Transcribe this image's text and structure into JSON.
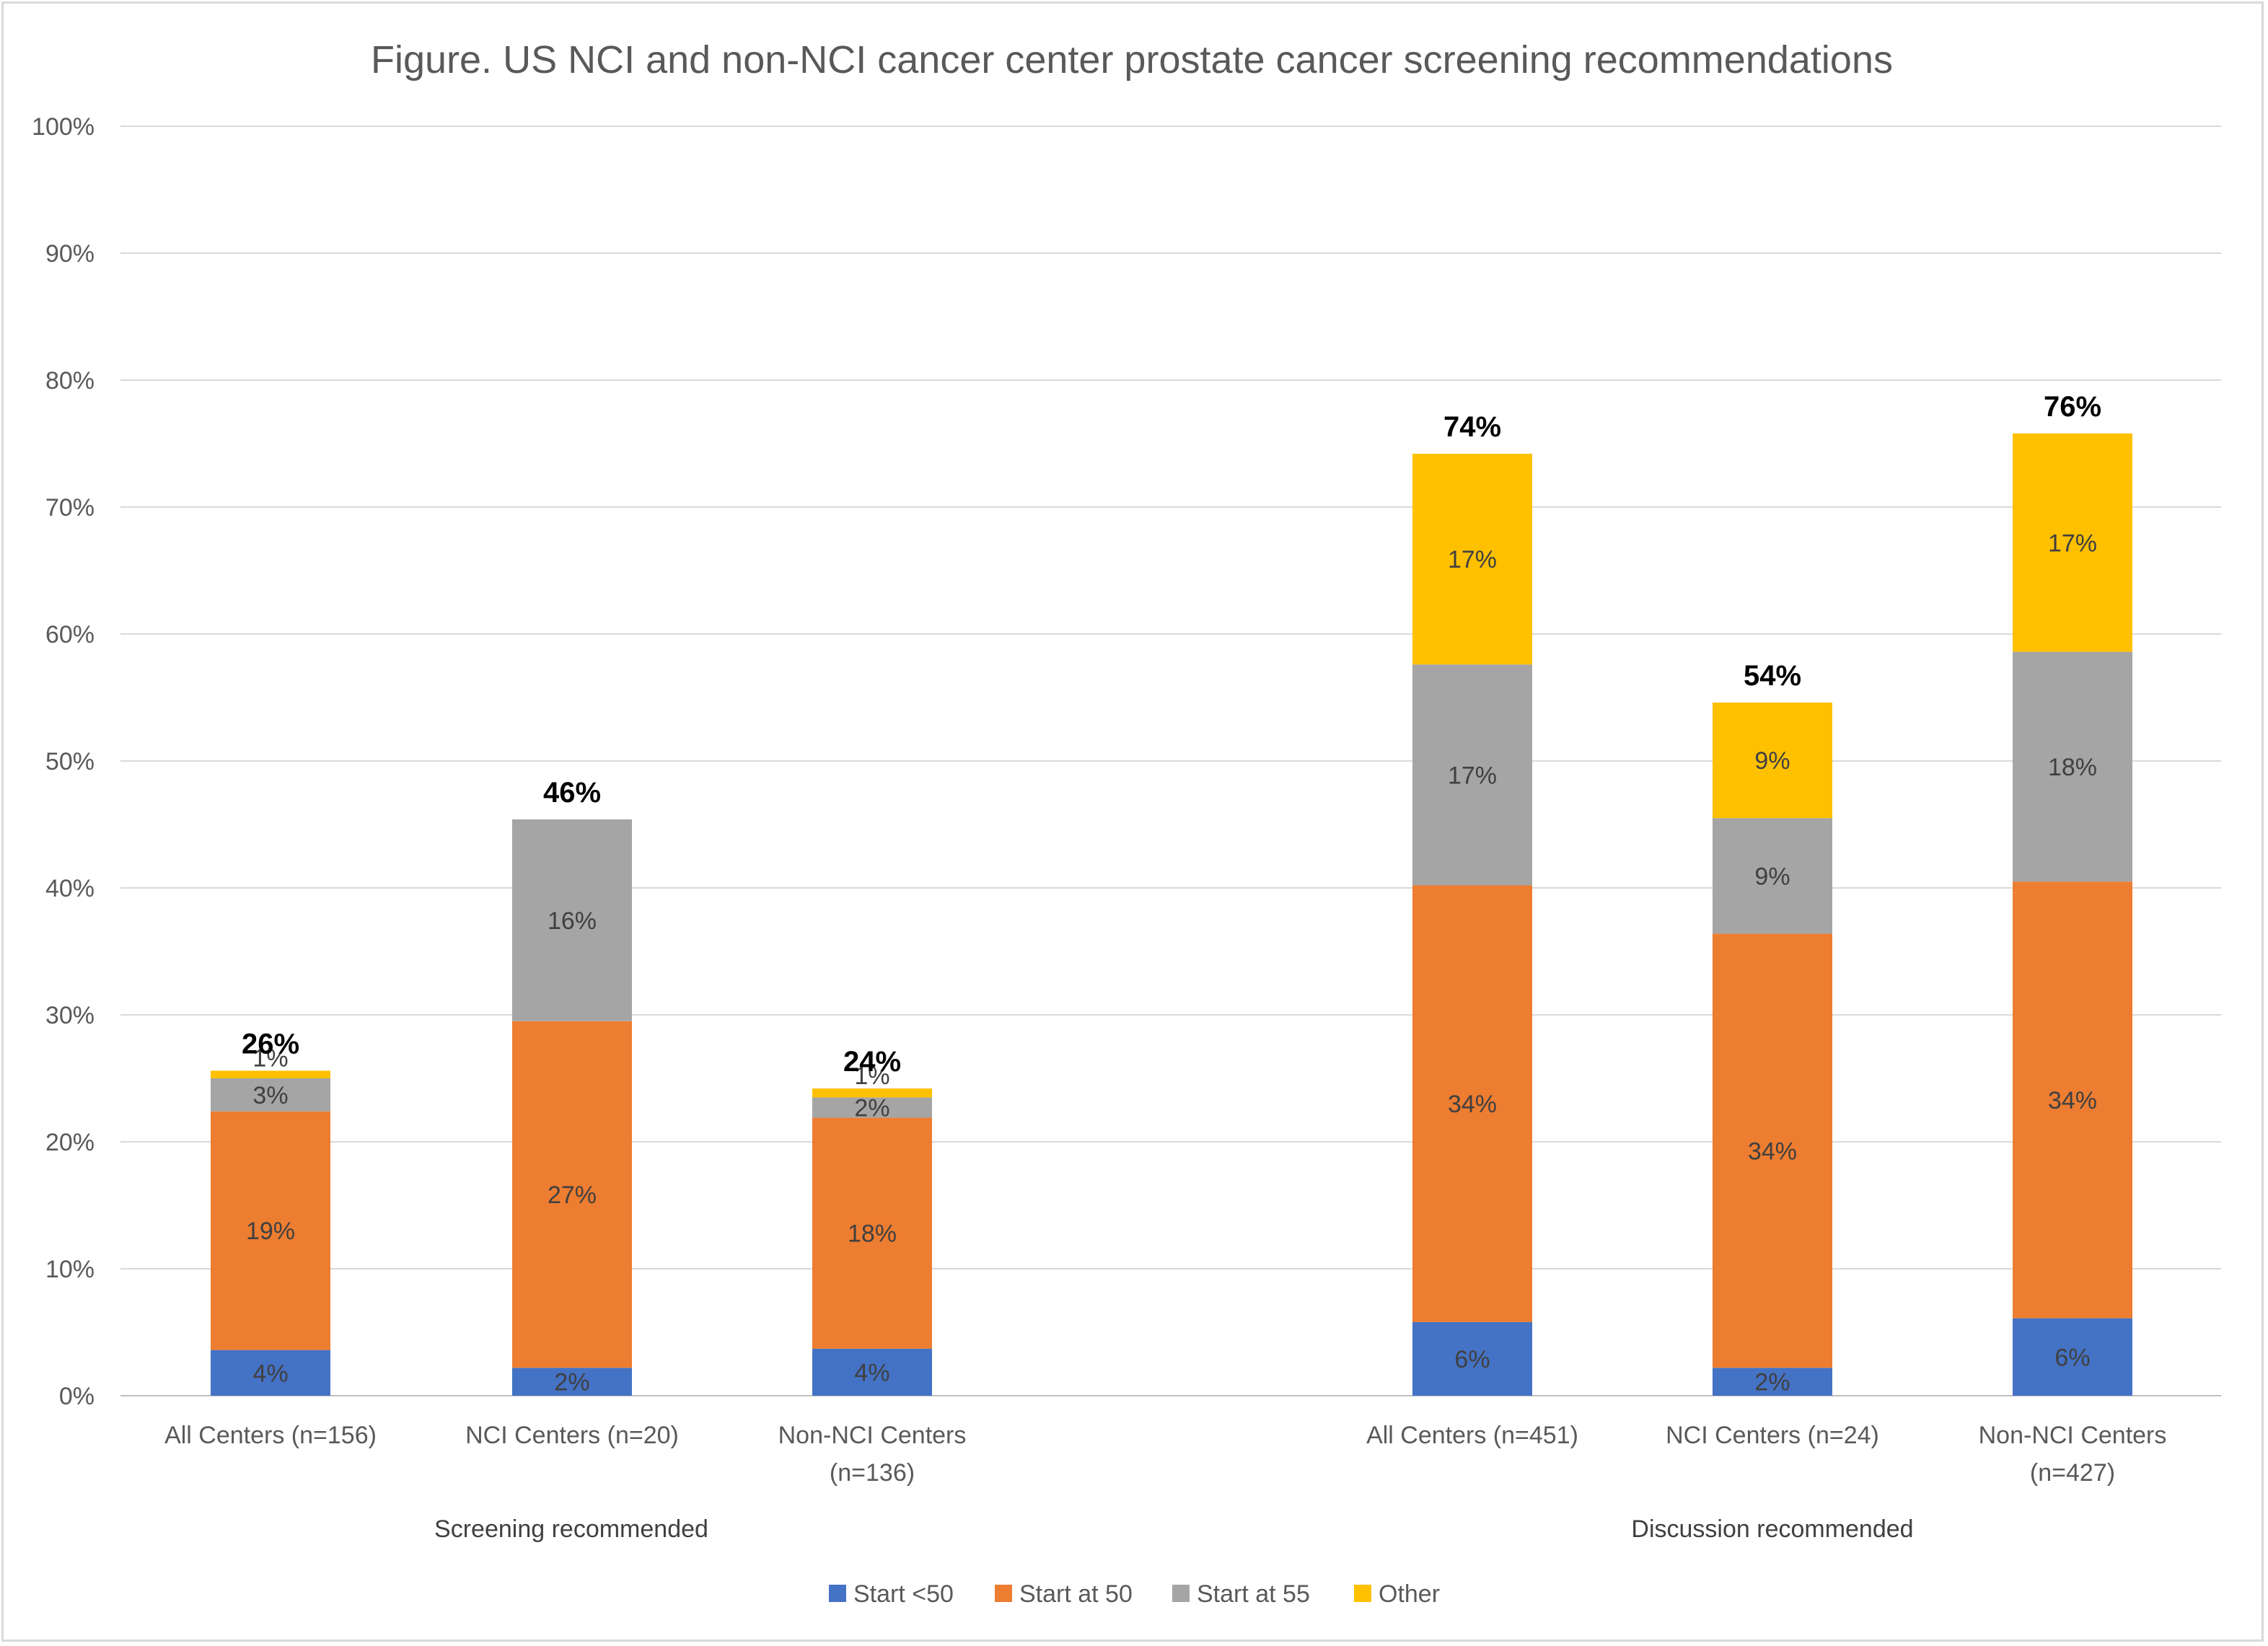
{
  "chart_data": {
    "type": "bar",
    "stacked": true,
    "title": "Figure. US NCI and non-NCI cancer center prostate cancer screening recommendations",
    "ylim": [
      0,
      100
    ],
    "y_ticks": [
      "0%",
      "10%",
      "20%",
      "30%",
      "40%",
      "50%",
      "60%",
      "70%",
      "80%",
      "90%",
      "100%"
    ],
    "grid": true,
    "legend_position": "bottom",
    "groups": [
      {
        "name": "Screening recommended",
        "categories": [
          "All Centers (n=156)",
          "NCI Centers (n=20)",
          "Non-NCI Centers (n=136)"
        ]
      },
      {
        "name": "Discussion recommended",
        "categories": [
          "All Centers (n=451)",
          "NCI Centers (n=24)",
          "Non-NCI Centers (n=427)"
        ]
      }
    ],
    "category_lines": [
      [
        "All Centers (n=156)"
      ],
      [
        "NCI Centers (n=20)"
      ],
      [
        "Non-NCI Centers",
        "(n=136)"
      ],
      [
        "All Centers (n=451)"
      ],
      [
        "NCI Centers (n=24)"
      ],
      [
        "Non-NCI Centers",
        "(n=427)"
      ]
    ],
    "series": [
      {
        "name": "Start <50",
        "color": "#4472C4",
        "values": [
          3.6,
          2.2,
          3.7,
          5.8,
          2.2,
          6.1
        ],
        "labels": [
          "4%",
          "2%",
          "4%",
          "6%",
          "2%",
          "6%"
        ]
      },
      {
        "name": "Start at 50",
        "color": "#ED7D31",
        "values": [
          18.8,
          27.3,
          18.2,
          34.4,
          34.2,
          34.4
        ],
        "labels": [
          "19%",
          "27%",
          "18%",
          "34%",
          "34%",
          "34%"
        ]
      },
      {
        "name": "Start at 55",
        "color": "#A5A5A5",
        "values": [
          2.6,
          15.9,
          1.6,
          17.4,
          9.1,
          18.1
        ],
        "labels": [
          "3%",
          "16%",
          "2%",
          "17%",
          "9%",
          "18%"
        ]
      },
      {
        "name": "Other",
        "color": "#FFC000",
        "values": [
          0.6,
          0,
          0.7,
          16.6,
          9.1,
          17.2
        ],
        "labels": [
          "1%",
          "",
          "1%",
          "17%",
          "9%",
          "17%"
        ]
      }
    ],
    "totals": [
      "26%",
      "46%",
      "24%",
      "74%",
      "54%",
      "76%"
    ]
  }
}
